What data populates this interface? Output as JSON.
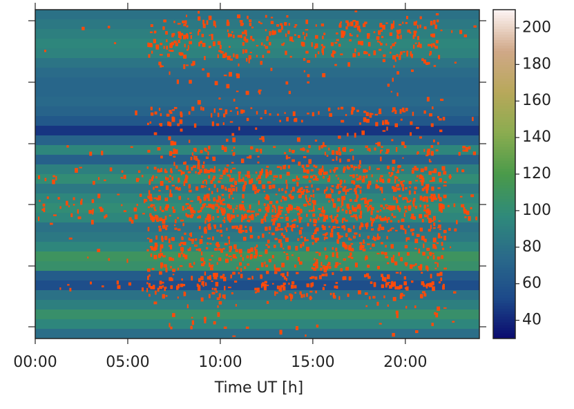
{
  "chart_data": {
    "type": "heatmap",
    "x_label": "Time UT [h]",
    "xlim": [
      0,
      24
    ],
    "xticks": [
      {
        "value": 0,
        "label": "00:00"
      },
      {
        "value": 5,
        "label": "05:00"
      },
      {
        "value": 10,
        "label": "10:00"
      },
      {
        "value": 15,
        "label": "15:00"
      },
      {
        "value": 20,
        "label": "20:00"
      }
    ],
    "row_values": [
      80,
      85,
      90,
      95,
      92,
      82,
      76,
      72,
      72,
      74,
      70,
      62,
      45,
      70,
      95,
      68,
      90,
      100,
      85,
      95,
      100,
      95,
      80,
      85,
      95,
      110,
      105,
      65,
      55,
      80,
      90,
      105,
      95,
      78
    ],
    "clim": [
      30,
      210
    ],
    "cticks": [
      40,
      60,
      80,
      100,
      120,
      140,
      160,
      180,
      200
    ],
    "colormap": [
      "#0a0a6e",
      "#1d4a8a",
      "#2a6a8a",
      "#2f8a7a",
      "#4a9a4a",
      "#8aac50",
      "#b8a85a",
      "#d0a888",
      "#fdf5f5"
    ],
    "flag_color": "#ff4a0a"
  }
}
